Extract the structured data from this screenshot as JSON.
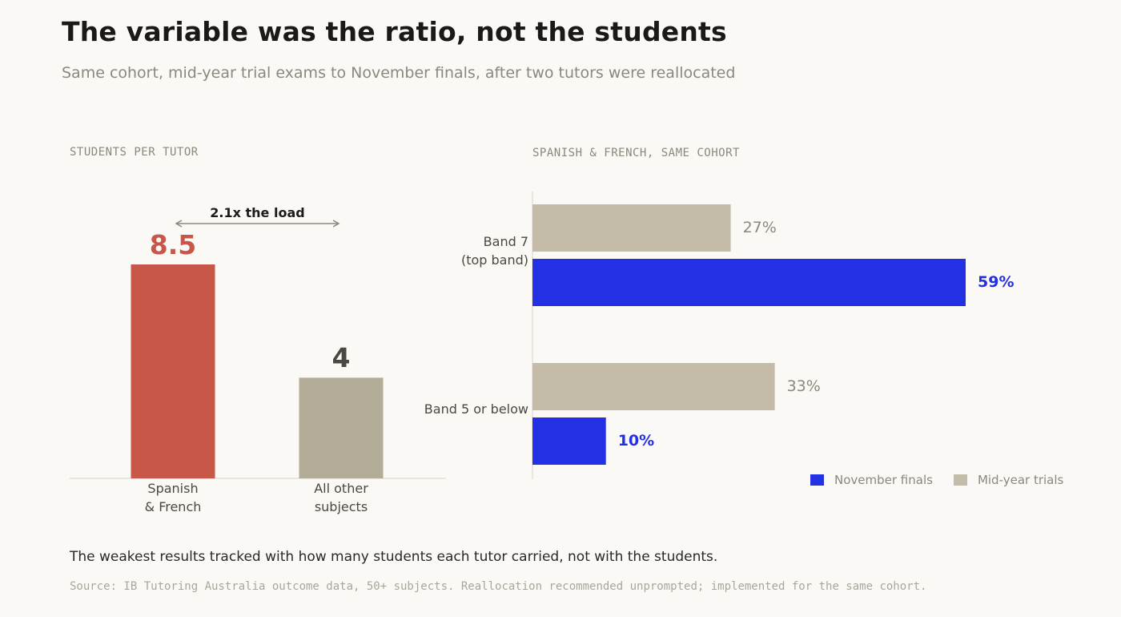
{
  "header": {
    "title": "The variable was the ratio, not the students",
    "subtitle": "Same cohort, mid-year trial exams to November finals, after two tutors were reallocated"
  },
  "colors": {
    "background": "#faf9f5",
    "highlight_bar": "#c8574a",
    "neutral_bar": "#b3ac99",
    "november_finals": "#2330e3",
    "mid_year_trials": "#c4bca9"
  },
  "chart_data": [
    {
      "type": "bar",
      "panel_label": "STUDENTS PER TUTOR",
      "categories": [
        "Spanish\n& French",
        "All other\nsubjects"
      ],
      "category_lines": [
        [
          "Spanish",
          "& French"
        ],
        [
          "All other",
          "subjects"
        ]
      ],
      "values": [
        8.5,
        4
      ],
      "value_labels": [
        "8.5",
        "4"
      ],
      "ylim": [
        0,
        8.5
      ],
      "annotation": "2.1x the load",
      "grid": false
    },
    {
      "type": "bar",
      "orientation": "horizontal",
      "panel_label": "SPANISH & FRENCH, SAME COHORT",
      "categories": [
        "Band 7\n(top band)",
        "Band 5 or below"
      ],
      "category_lines": [
        [
          "Band 7",
          "(top band)"
        ],
        [
          "Band 5 or below"
        ]
      ],
      "series": [
        {
          "name": "Mid-year trials",
          "values": [
            27,
            33
          ],
          "labels": [
            "27%",
            "33%"
          ]
        },
        {
          "name": "November finals",
          "values": [
            59,
            10
          ],
          "labels": [
            "59%",
            "10%"
          ]
        }
      ],
      "xlim": [
        0,
        59
      ],
      "legend_position": "bottom-right",
      "legend_order": [
        "November finals",
        "Mid-year trials"
      ],
      "grid": false
    }
  ],
  "footer": {
    "takeaway": "The weakest results tracked with how many students each tutor carried, not with the students.",
    "source": "Source: IB Tutoring Australia outcome data, 50+ subjects. Reallocation recommended unprompted; implemented for the same cohort."
  }
}
